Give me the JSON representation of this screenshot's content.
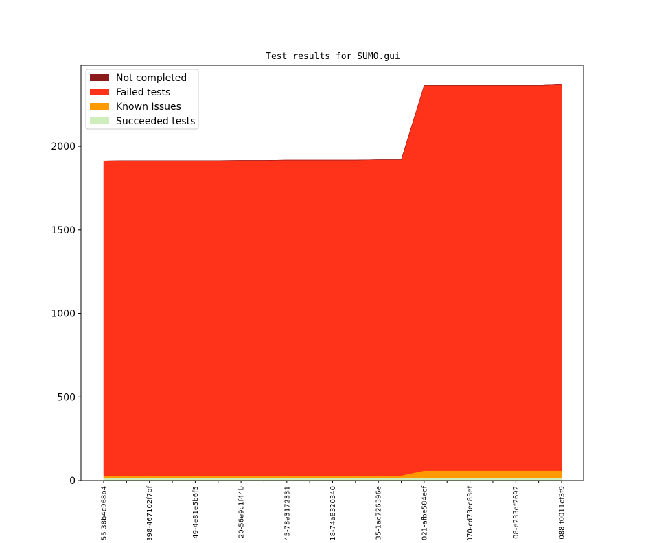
{
  "chart_data": {
    "type": "area",
    "stacked": true,
    "title": "Test results for SUMO.gui",
    "xlabel": "",
    "ylabel": "",
    "ylim": [
      0,
      2485
    ],
    "yticks": [
      0,
      500,
      1000,
      1500,
      2000
    ],
    "xtick_labels": [
      "55-38b4c968b4",
      "398-467102f7bf",
      "49-4e81e5b6f5",
      "20-56e9c1f44b",
      "45-78e3172331",
      "18-74a8320340",
      "35-1ac726396e",
      "021-afbe584ecf",
      "070-cd73ec83ef",
      "08-e233df2692",
      "088-f0011ef3f9"
    ],
    "tick_every": 2,
    "legend": {
      "placement": "top-left"
    },
    "grid": false,
    "series": [
      {
        "name": "Not completed",
        "color": "#8b1a1a",
        "values": [
          0,
          0,
          0,
          0,
          0,
          0,
          0,
          0,
          0,
          0,
          0,
          0,
          0,
          0,
          0,
          0,
          0,
          0,
          0,
          0,
          0
        ]
      },
      {
        "name": "Failed tests",
        "color": "#ff331a",
        "values": [
          1883,
          1885,
          1885,
          1885,
          1885,
          1885,
          1886,
          1886,
          1888,
          1888,
          1888,
          1888,
          1890,
          1890,
          2305,
          2305,
          2305,
          2305,
          2305,
          2305,
          2310
        ]
      },
      {
        "name": "Known Issues",
        "color": "#ff9900",
        "values": [
          13,
          13,
          13,
          13,
          13,
          13,
          13,
          13,
          13,
          13,
          13,
          13,
          13,
          13,
          42,
          42,
          42,
          42,
          42,
          42,
          42
        ]
      },
      {
        "name": "Succeeded tests",
        "color": "#cfedbd",
        "values": [
          17,
          17,
          17,
          17,
          17,
          17,
          17,
          17,
          17,
          17,
          17,
          17,
          17,
          17,
          17,
          17,
          17,
          17,
          17,
          17,
          17
        ]
      }
    ]
  }
}
